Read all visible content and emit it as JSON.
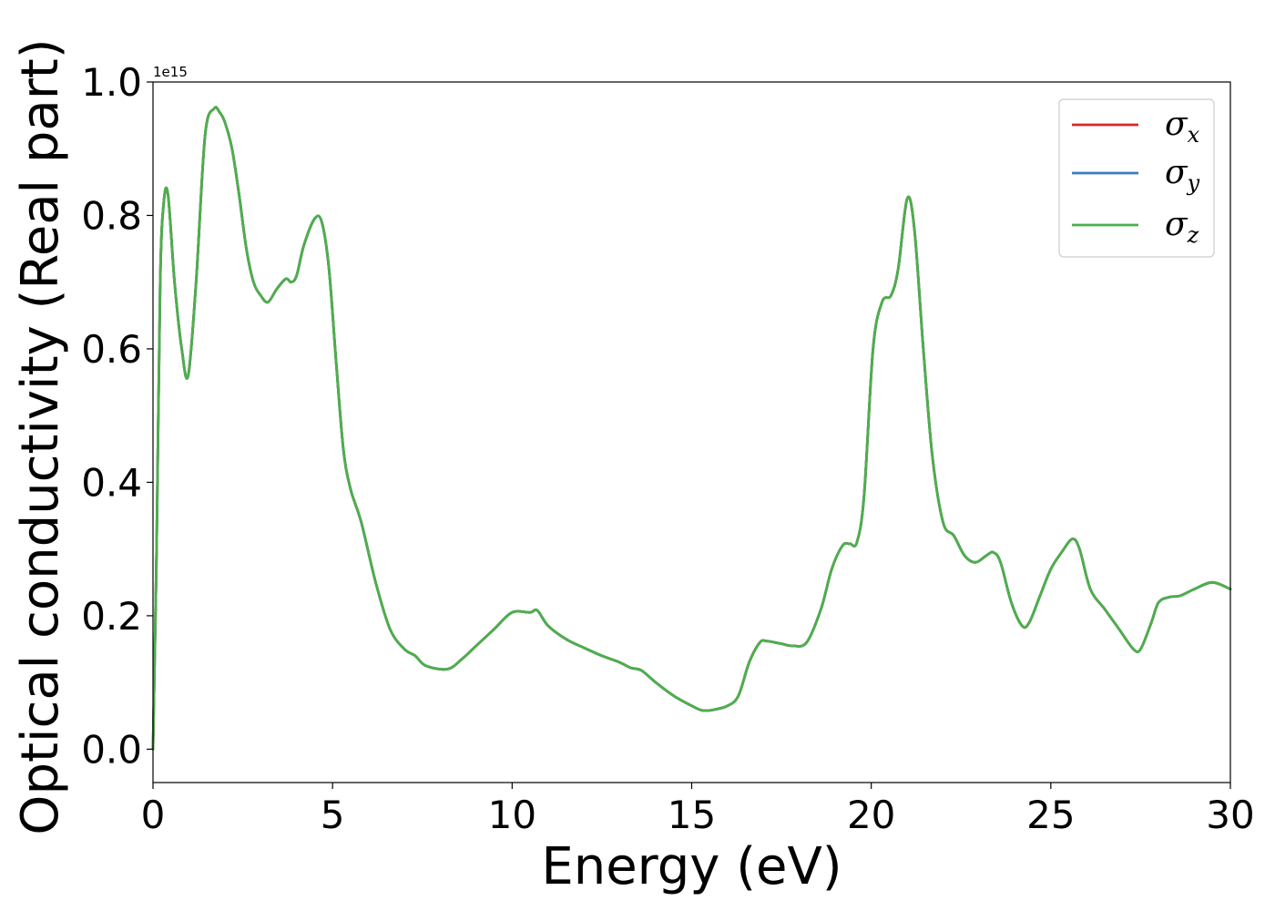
{
  "chart_data": {
    "type": "line",
    "xlabel": "Energy (eV)",
    "ylabel": "Optical conductivity (Real part)",
    "y_offset_label": "1e15",
    "xlim": [
      0,
      30
    ],
    "ylim": [
      -0.05,
      1.0
    ],
    "x_ticks": [
      0,
      5,
      10,
      15,
      20,
      25,
      30
    ],
    "x_tick_labels": [
      "0",
      "5",
      "10",
      "15",
      "20",
      "25",
      "30"
    ],
    "y_ticks": [
      0.0,
      0.2,
      0.4,
      0.6,
      0.8,
      1.0
    ],
    "y_tick_labels": [
      "0.0",
      "0.2",
      "0.4",
      "0.6",
      "0.8",
      "1.0"
    ],
    "grid": false,
    "legend_position": "top-right",
    "series": [
      {
        "name": "σx",
        "base": "σ",
        "sub": "x",
        "color": "#d62728",
        "draw_order": 1
      },
      {
        "name": "σy",
        "base": "σ",
        "sub": "y",
        "color": "#3a7db8",
        "draw_order": 2
      },
      {
        "name": "σz",
        "base": "σ",
        "sub": "z",
        "color": "#4daf4a",
        "draw_order": 3
      }
    ],
    "shared_values_note": "all three series overlap exactly",
    "x": [
      0,
      0.1,
      0.2,
      0.3,
      0.42,
      0.6,
      0.8,
      0.98,
      1.2,
      1.45,
      1.7,
      1.85,
      2.0,
      2.2,
      2.4,
      2.6,
      2.8,
      3.0,
      3.2,
      3.45,
      3.7,
      3.85,
      4.0,
      4.2,
      4.5,
      4.7,
      4.9,
      5.1,
      5.3,
      5.5,
      5.8,
      6.2,
      6.6,
      7.0,
      7.3,
      7.6,
      8.2,
      8.6,
      9.0,
      9.5,
      10.0,
      10.5,
      10.7,
      11.0,
      11.5,
      12.0,
      12.5,
      13.0,
      13.3,
      13.6,
      14.0,
      14.5,
      15.0,
      15.3,
      15.6,
      16.0,
      16.3,
      16.6,
      16.9,
      17.1,
      17.5,
      17.8,
      18.2,
      18.6,
      18.9,
      19.2,
      19.4,
      19.6,
      19.8,
      20.05,
      20.3,
      20.55,
      20.75,
      21.0,
      21.2,
      21.45,
      21.7,
      22.0,
      22.3,
      22.6,
      22.9,
      23.2,
      23.4,
      23.6,
      23.9,
      24.2,
      24.4,
      24.7,
      25.0,
      25.3,
      25.6,
      25.8,
      26.1,
      26.5,
      26.9,
      27.3,
      27.5,
      27.8,
      28.0,
      28.3,
      28.6,
      29.0,
      29.5,
      30.0
    ],
    "values": [
      0.0,
      0.3,
      0.7,
      0.82,
      0.83,
      0.7,
      0.6,
      0.56,
      0.7,
      0.92,
      0.96,
      0.955,
      0.94,
      0.9,
      0.83,
      0.75,
      0.7,
      0.68,
      0.67,
      0.69,
      0.705,
      0.7,
      0.71,
      0.755,
      0.795,
      0.79,
      0.72,
      0.58,
      0.45,
      0.39,
      0.34,
      0.25,
      0.18,
      0.15,
      0.14,
      0.125,
      0.12,
      0.135,
      0.155,
      0.18,
      0.205,
      0.205,
      0.208,
      0.185,
      0.165,
      0.152,
      0.14,
      0.13,
      0.122,
      0.118,
      0.1,
      0.08,
      0.065,
      0.058,
      0.059,
      0.065,
      0.08,
      0.13,
      0.16,
      0.162,
      0.158,
      0.155,
      0.16,
      0.21,
      0.27,
      0.305,
      0.308,
      0.31,
      0.38,
      0.6,
      0.67,
      0.68,
      0.72,
      0.825,
      0.78,
      0.6,
      0.44,
      0.34,
      0.32,
      0.29,
      0.28,
      0.29,
      0.295,
      0.28,
      0.22,
      0.185,
      0.19,
      0.23,
      0.27,
      0.295,
      0.315,
      0.3,
      0.24,
      0.21,
      0.18,
      0.15,
      0.15,
      0.19,
      0.22,
      0.228,
      0.23,
      0.24,
      0.25,
      0.24
    ]
  }
}
